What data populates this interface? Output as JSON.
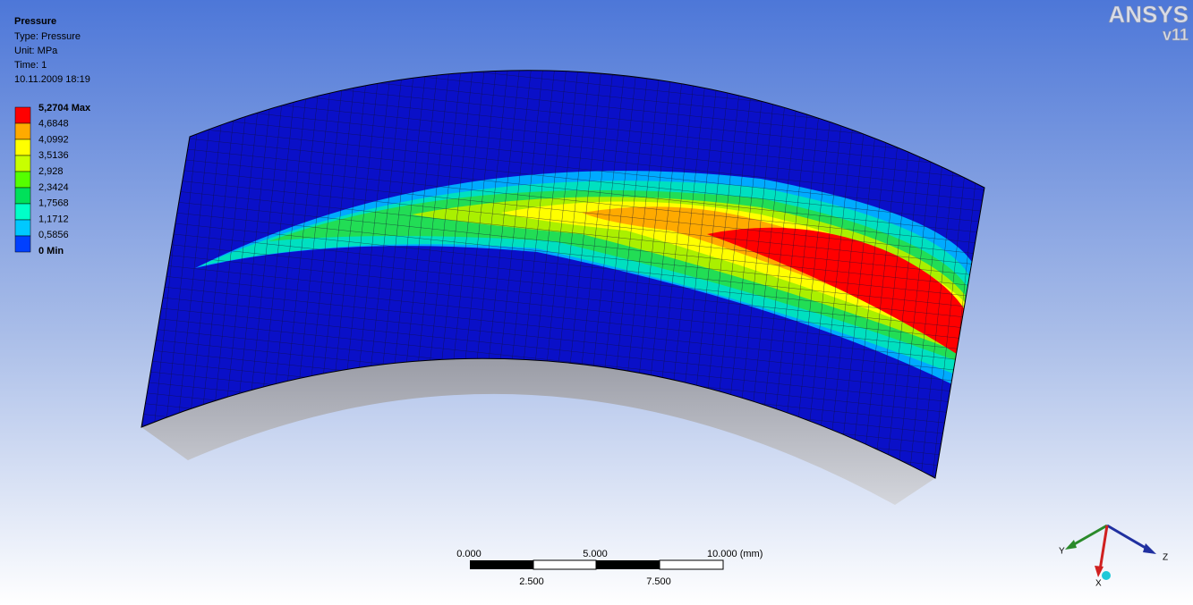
{
  "header": {
    "title": "Pressure",
    "lines": [
      "Type: Pressure",
      "Unit: MPa",
      "Time: 1",
      "10.11.2009 18:19"
    ]
  },
  "legend": {
    "labels": [
      "5,2704 Max",
      "4,6848",
      "4,0992",
      "3,5136",
      "2,928",
      "2,3424",
      "1,7568",
      "1,1712",
      "0,5856",
      "0 Min"
    ],
    "colors": [
      "#ff0000",
      "#ffaa00",
      "#ffff00",
      "#c8ff00",
      "#55ff00",
      "#00e05a",
      "#00ffc8",
      "#00c8ff",
      "#0040ff"
    ]
  },
  "scale_bar": {
    "top_labels": [
      "0.000",
      "5.000",
      "10.000 (mm)"
    ],
    "bottom_labels": [
      "2.500",
      "7.500"
    ]
  },
  "triad": {
    "y": "Y",
    "z": "Z",
    "x": "X"
  },
  "logo": {
    "name": "ANSYS",
    "version": "v11"
  }
}
